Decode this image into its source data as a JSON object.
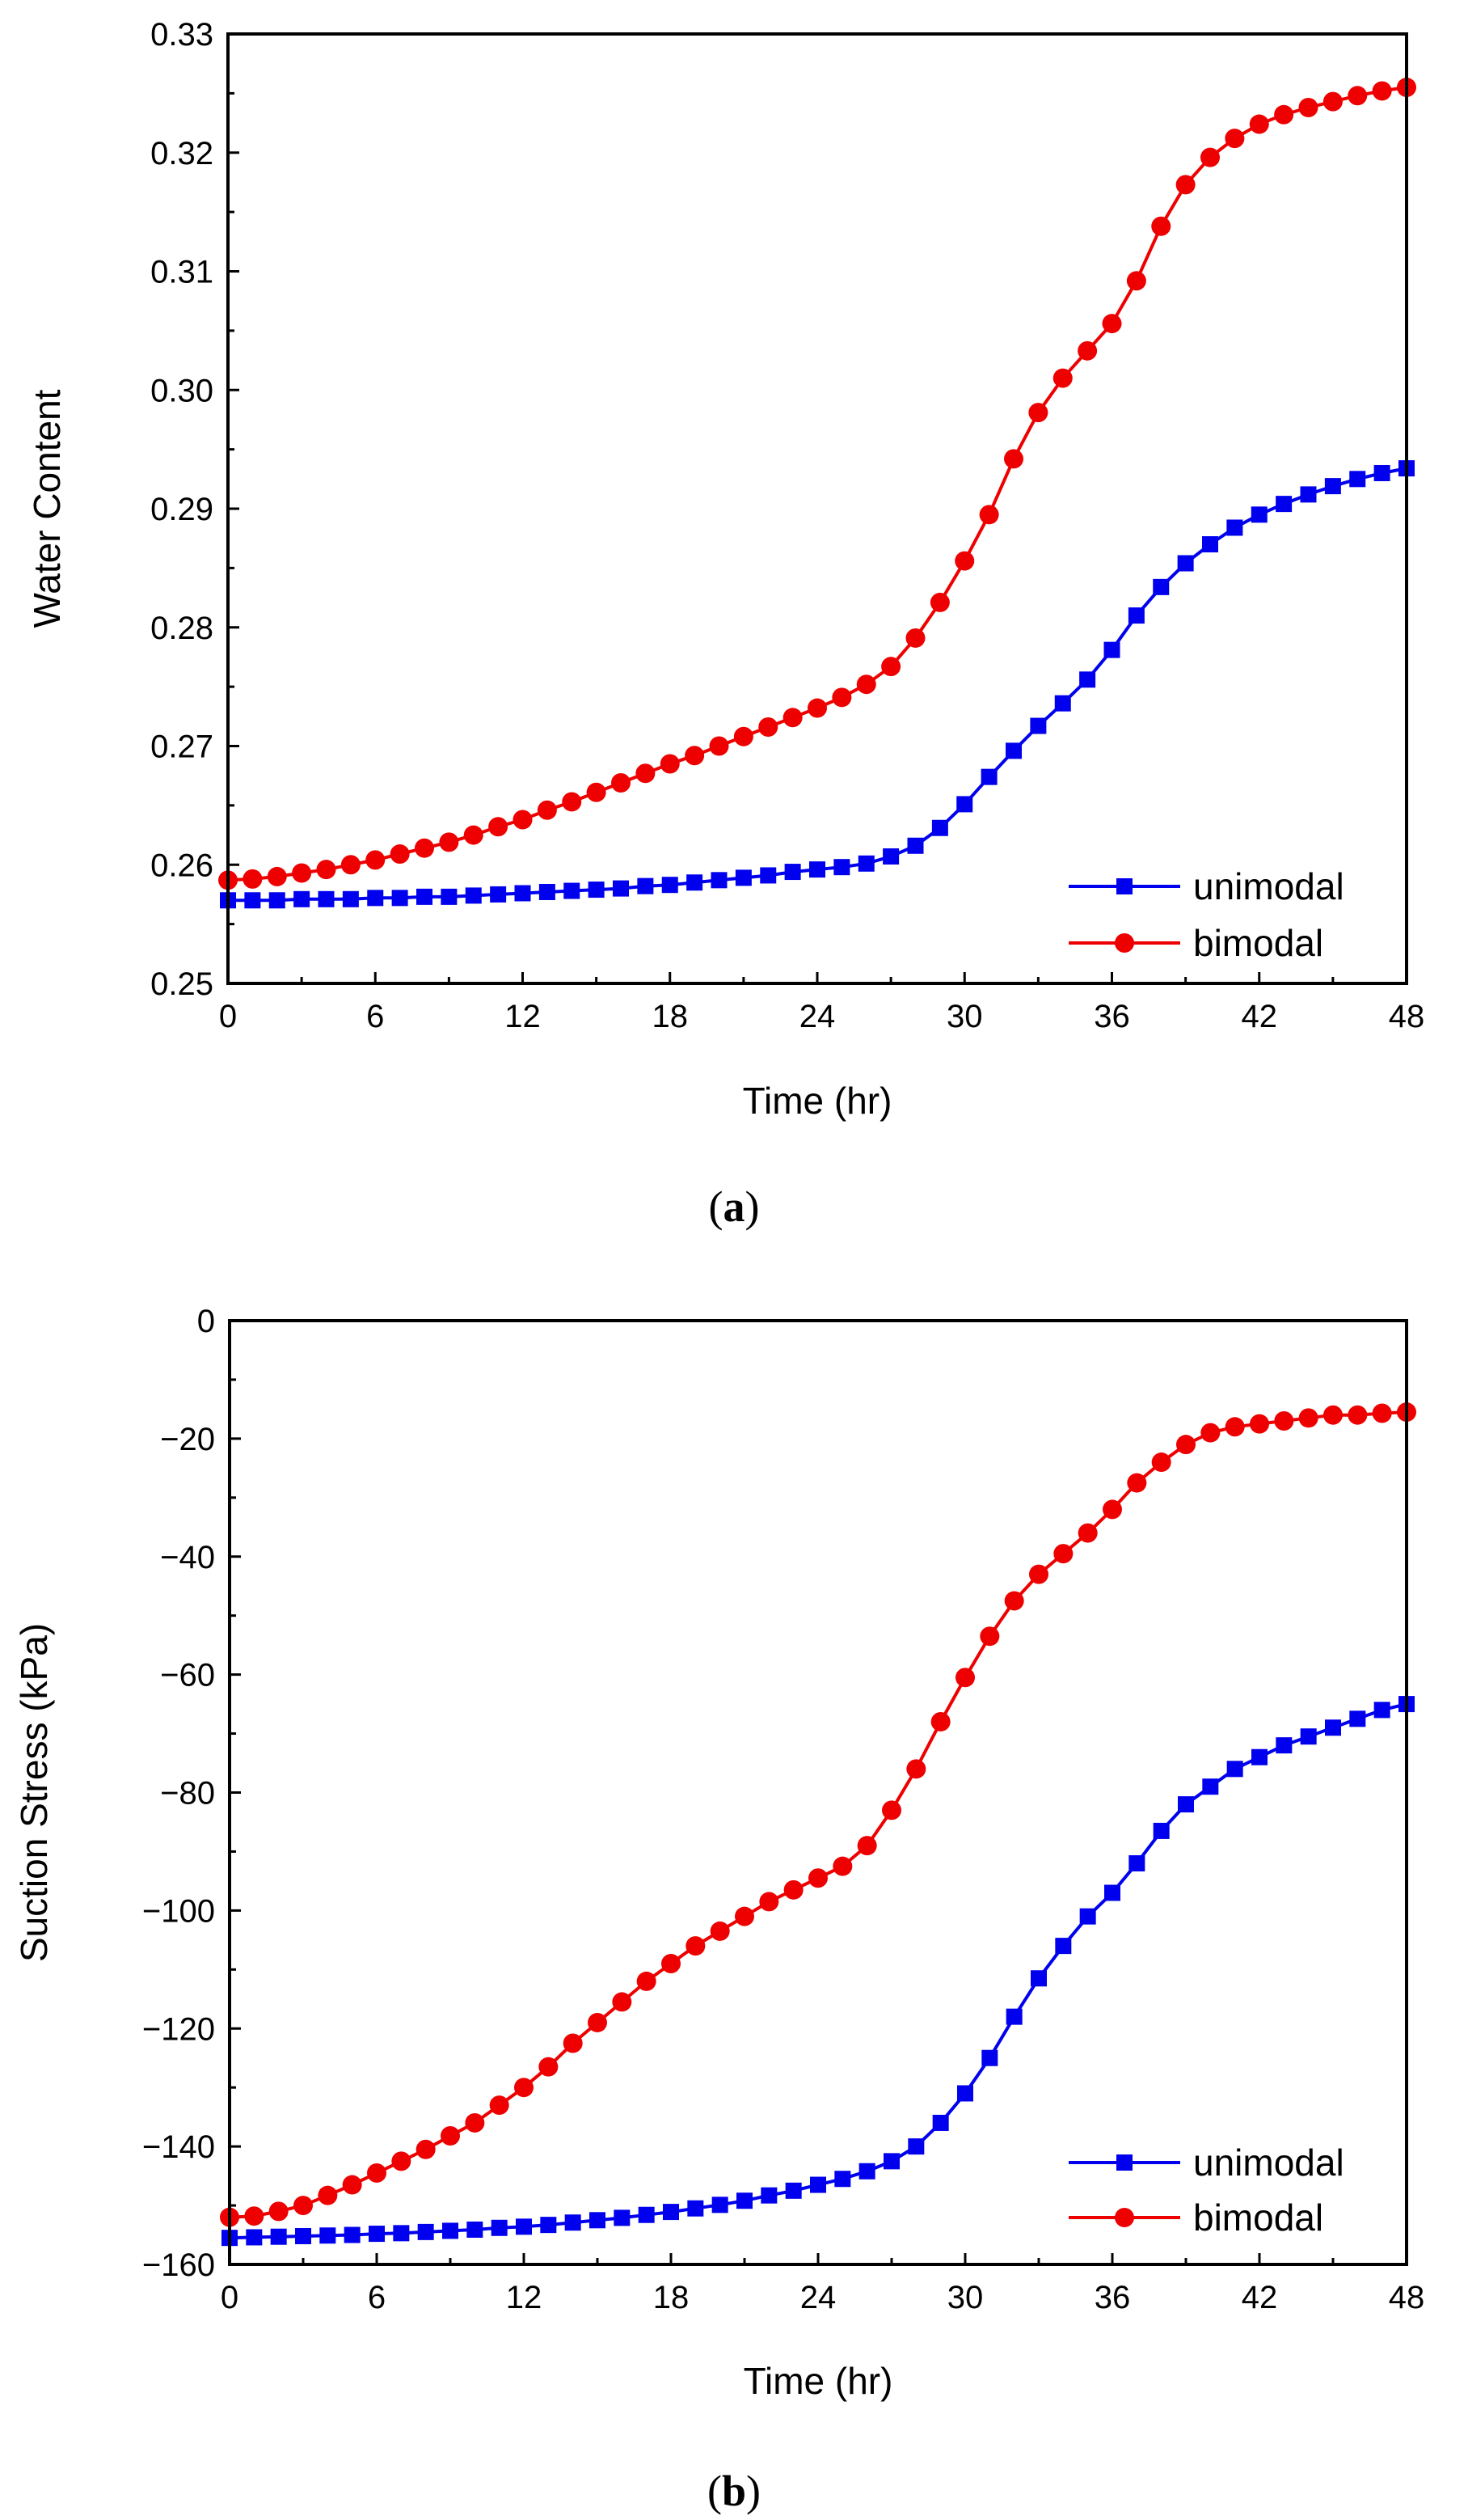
{
  "chart_data": [
    {
      "type": "line",
      "panel": "a",
      "panel_open": "(",
      "panel_close": ")",
      "xlabel": "Time (hr)",
      "ylabel": "Water Content",
      "xlim": [
        0,
        48
      ],
      "ylim": [
        0.25,
        0.33
      ],
      "xticks": [
        0,
        6,
        12,
        18,
        24,
        30,
        36,
        42,
        48
      ],
      "xtick_labels": [
        "0",
        "6",
        "12",
        "18",
        "24",
        "30",
        "36",
        "42",
        "48"
      ],
      "yticks": [
        0.25,
        0.26,
        0.27,
        0.28,
        0.29,
        0.3,
        0.31,
        0.32,
        0.33
      ],
      "ytick_labels": [
        "0.25",
        "0.26",
        "0.27",
        "0.28",
        "0.29",
        "0.30",
        "0.31",
        "0.32",
        "0.33"
      ],
      "legend_position": "bottom-right",
      "series": [
        {
          "name": "unimodal",
          "color": "#0000ee",
          "marker": "square",
          "x": [
            0,
            1,
            2,
            3,
            4,
            5,
            6,
            7,
            8,
            9,
            10,
            11,
            12,
            13,
            14,
            15,
            16,
            17,
            18,
            19,
            20,
            21,
            22,
            23,
            24,
            25,
            26,
            27,
            28,
            29,
            30,
            31,
            32,
            33,
            34,
            35,
            36,
            37,
            38,
            39,
            40,
            41,
            42,
            43,
            44,
            45,
            46,
            47,
            48
          ],
          "values": [
            0.257,
            0.257,
            0.257,
            0.2571,
            0.2571,
            0.2571,
            0.2572,
            0.2572,
            0.2573,
            0.2573,
            0.2574,
            0.2575,
            0.2576,
            0.2577,
            0.2578,
            0.2579,
            0.258,
            0.2582,
            0.2583,
            0.2585,
            0.2587,
            0.2589,
            0.2591,
            0.2594,
            0.2596,
            0.2598,
            0.2601,
            0.2607,
            0.2616,
            0.2631,
            0.2651,
            0.2674,
            0.2696,
            0.2717,
            0.2736,
            0.2756,
            0.2781,
            0.281,
            0.2834,
            0.2854,
            0.287,
            0.2884,
            0.2895,
            0.2904,
            0.2912,
            0.2919,
            0.2925,
            0.293,
            0.2934
          ]
        },
        {
          "name": "bimodal",
          "color": "#ee0000",
          "marker": "circle",
          "x": [
            0,
            1,
            2,
            3,
            4,
            5,
            6,
            7,
            8,
            9,
            10,
            11,
            12,
            13,
            14,
            15,
            16,
            17,
            18,
            19,
            20,
            21,
            22,
            23,
            24,
            25,
            26,
            27,
            28,
            29,
            30,
            31,
            32,
            33,
            34,
            35,
            36,
            37,
            38,
            39,
            40,
            41,
            42,
            43,
            44,
            45,
            46,
            47,
            48
          ],
          "values": [
            0.2587,
            0.2588,
            0.259,
            0.2593,
            0.2596,
            0.26,
            0.2604,
            0.2609,
            0.2614,
            0.2619,
            0.2625,
            0.2632,
            0.2638,
            0.2646,
            0.2653,
            0.2661,
            0.2669,
            0.2677,
            0.2685,
            0.2692,
            0.27,
            0.2708,
            0.2716,
            0.2724,
            0.2732,
            0.2741,
            0.2752,
            0.2767,
            0.2791,
            0.2821,
            0.2856,
            0.2895,
            0.2942,
            0.2981,
            0.301,
            0.3033,
            0.3056,
            0.3092,
            0.3138,
            0.3173,
            0.3196,
            0.3212,
            0.3224,
            0.3232,
            0.3238,
            0.3243,
            0.3248,
            0.3252,
            0.3255
          ]
        }
      ]
    },
    {
      "type": "line",
      "panel": "b",
      "panel_open": "(",
      "panel_close": ")",
      "xlabel": "Time (hr)",
      "ylabel": "Suction Stress (kPa)",
      "xlim": [
        0,
        48
      ],
      "ylim": [
        -160,
        0
      ],
      "xticks": [
        0,
        6,
        12,
        18,
        24,
        30,
        36,
        42,
        48
      ],
      "xtick_labels": [
        "0",
        "6",
        "12",
        "18",
        "24",
        "30",
        "36",
        "42",
        "48"
      ],
      "yticks": [
        -160,
        -140,
        -120,
        -100,
        -80,
        -60,
        -40,
        -20,
        0
      ],
      "ytick_labels": [
        "−160",
        "−140",
        "−120",
        "−100",
        "−80",
        "−60",
        "−40",
        "−20",
        "0"
      ],
      "legend_position": "bottom-right",
      "series": [
        {
          "name": "unimodal",
          "color": "#0000ee",
          "marker": "square",
          "x": [
            0,
            1,
            2,
            3,
            4,
            5,
            6,
            7,
            8,
            9,
            10,
            11,
            12,
            13,
            14,
            15,
            16,
            17,
            18,
            19,
            20,
            21,
            22,
            23,
            24,
            25,
            26,
            27,
            28,
            29,
            30,
            31,
            32,
            33,
            34,
            35,
            36,
            37,
            38,
            39,
            40,
            41,
            42,
            43,
            44,
            45,
            46,
            47,
            48
          ],
          "values": [
            -155.5,
            -155.4,
            -155.3,
            -155.2,
            -155.1,
            -155.0,
            -154.8,
            -154.7,
            -154.5,
            -154.3,
            -154.1,
            -153.8,
            -153.6,
            -153.3,
            -152.9,
            -152.5,
            -152.1,
            -151.6,
            -151.1,
            -150.5,
            -149.9,
            -149.2,
            -148.3,
            -147.5,
            -146.5,
            -145.5,
            -144.2,
            -142.5,
            -140.0,
            -136.0,
            -131.0,
            -125.0,
            -118.0,
            -111.5,
            -106.0,
            -101.0,
            -97.0,
            -92.0,
            -86.5,
            -82.0,
            -79.0,
            -76.0,
            -74.0,
            -72.0,
            -70.5,
            -69.0,
            -67.5,
            -66.0,
            -65.0
          ]
        },
        {
          "name": "bimodal",
          "color": "#ee0000",
          "marker": "circle",
          "x": [
            0,
            1,
            2,
            3,
            4,
            5,
            6,
            7,
            8,
            9,
            10,
            11,
            12,
            13,
            14,
            15,
            16,
            17,
            18,
            19,
            20,
            21,
            22,
            23,
            24,
            25,
            26,
            27,
            28,
            29,
            30,
            31,
            32,
            33,
            34,
            35,
            36,
            37,
            38,
            39,
            40,
            41,
            42,
            43,
            44,
            45,
            46,
            47,
            48
          ],
          "values": [
            -152.0,
            -151.8,
            -151.0,
            -150.0,
            -148.3,
            -146.5,
            -144.5,
            -142.5,
            -140.5,
            -138.2,
            -136.0,
            -133.0,
            -130.0,
            -126.5,
            -122.5,
            -119.0,
            -115.5,
            -112.0,
            -109.0,
            -106.0,
            -103.5,
            -101.0,
            -98.5,
            -96.5,
            -94.5,
            -92.5,
            -89.0,
            -83.0,
            -76.0,
            -68.0,
            -60.5,
            -53.5,
            -47.5,
            -43.0,
            -39.5,
            -36.0,
            -32.0,
            -27.5,
            -24.0,
            -21.0,
            -19.0,
            -18.0,
            -17.5,
            -17.0,
            -16.5,
            -16.0,
            -16.0,
            -15.7,
            -15.5
          ]
        }
      ]
    }
  ]
}
